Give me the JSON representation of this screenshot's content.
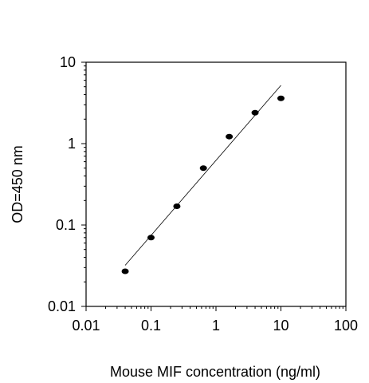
{
  "chart_data": {
    "type": "scatter",
    "xscale": "log",
    "yscale": "log",
    "xlabel": "Mouse MIF concentration (ng/ml)",
    "ylabel": "OD=450 nm",
    "xlim": [
      0.01,
      100
    ],
    "ylim": [
      0.01,
      10
    ],
    "xticks": [
      "0.01",
      "0.1",
      "1",
      "10",
      "100"
    ],
    "yticks": [
      "0.01",
      "0.1",
      "1",
      "10"
    ],
    "grid": false,
    "legend": false,
    "series": [
      {
        "x": [
          0.04,
          0.1,
          0.25,
          0.64,
          1.6,
          4,
          10
        ],
        "y": [
          0.027,
          0.07,
          0.17,
          0.5,
          1.22,
          2.4,
          3.6
        ]
      }
    ],
    "fit_line": {
      "x": [
        0.04,
        10
      ],
      "y": [
        0.032,
        5.2
      ]
    },
    "colors": {
      "marker": "#000000",
      "line": "#000000",
      "axis": "#000000"
    }
  }
}
